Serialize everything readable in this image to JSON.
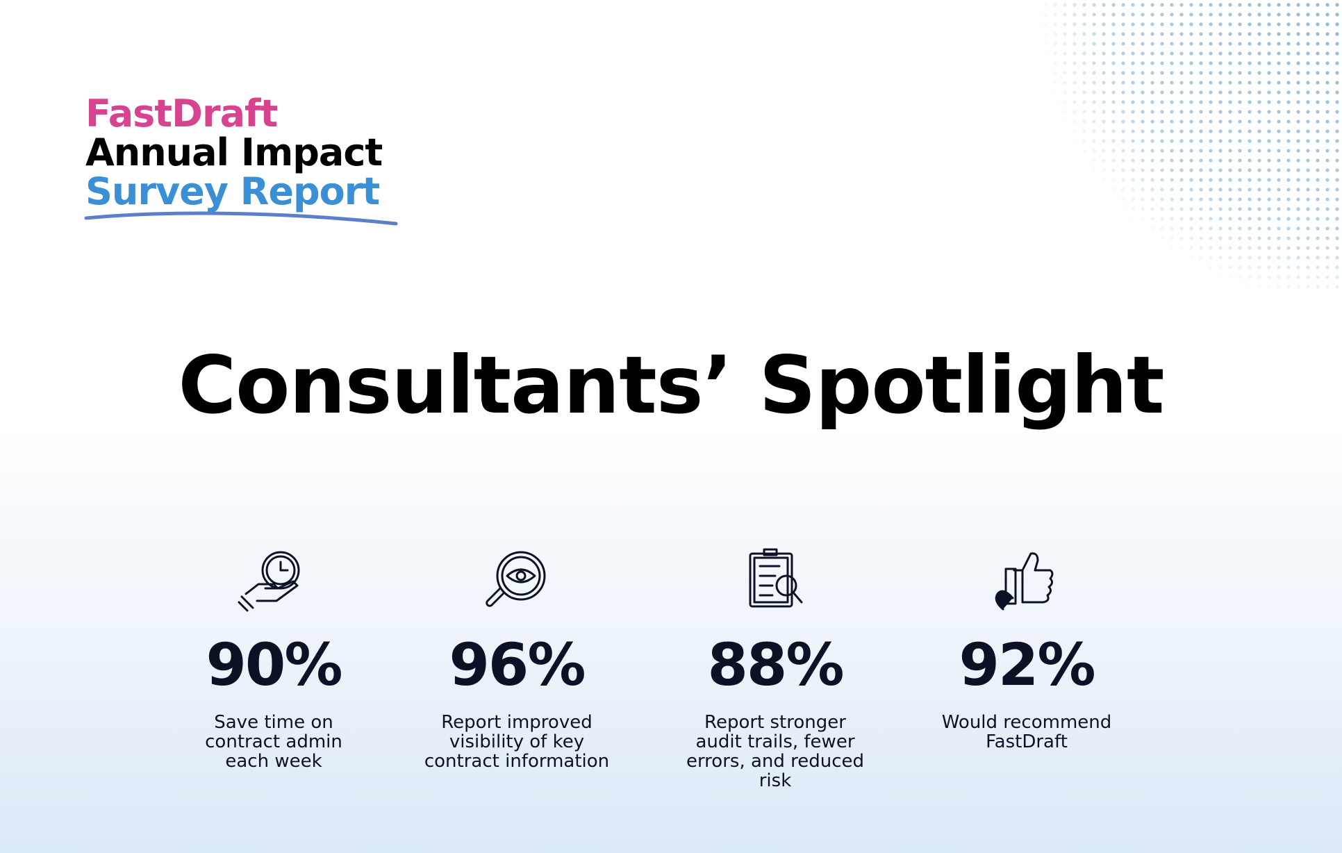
{
  "header": {
    "brand": "FastDraft",
    "line1": "Annual Impact",
    "line2": "Survey Report"
  },
  "title": "Consultants’ Spotlight",
  "stats": [
    {
      "value": "90%",
      "lines": [
        "Save time on",
        "contract admin",
        "each week"
      ]
    },
    {
      "value": "96%",
      "lines": [
        "Report improved",
        "visibility of key",
        "contract information"
      ]
    },
    {
      "value": "88%",
      "lines": [
        "Report stronger",
        "audit trails, fewer",
        "errors, and reduced",
        "risk"
      ]
    },
    {
      "value": "92%",
      "lines": [
        "Would recommend",
        "FastDraft"
      ]
    }
  ]
}
